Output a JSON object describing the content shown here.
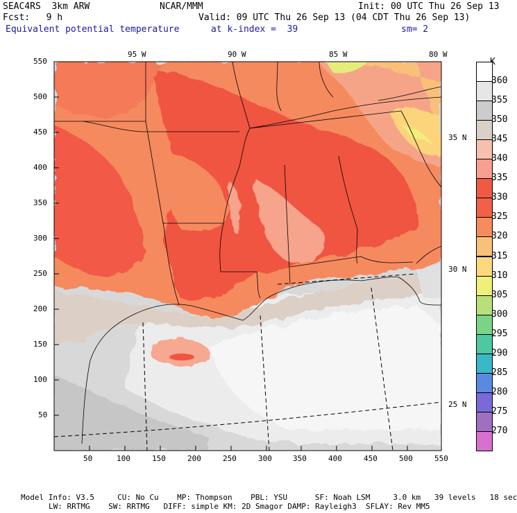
{
  "header": {
    "model": "SEAC4RS  3km ARW",
    "org": "NCAR/MMM",
    "init": "Init: 00 UTC Thu 26 Sep 13",
    "fcst": "Fcst:   9 h",
    "valid": "Valid: 09 UTC Thu 26 Sep 13 (04 CDT Thu 26 Sep 13)",
    "field": "Equivalent potential temperature",
    "level": "at k-index =  39",
    "smoothing": "sm= 2"
  },
  "top_longitudes": [
    "95 W",
    "90 W",
    "85 W",
    "80 W"
  ],
  "right_latitudes": [
    "35 N",
    "30 N",
    "25 N"
  ],
  "x_ticks": [
    "50",
    "100",
    "150",
    "200",
    "250",
    "300",
    "350",
    "400",
    "450",
    "500",
    "550"
  ],
  "y_ticks": [
    "550",
    "500",
    "450",
    "400",
    "350",
    "300",
    "250",
    "200",
    "150",
    "100",
    "50"
  ],
  "colorbar": {
    "unit": "K",
    "levels": [
      "360",
      "355",
      "350",
      "345",
      "340",
      "335",
      "330",
      "325",
      "320",
      "315",
      "310",
      "305",
      "300",
      "295",
      "290",
      "285",
      "280",
      "275",
      "270"
    ],
    "colors": [
      "#ffffff",
      "#e6e6e6",
      "#cccccc",
      "#d9d0c8",
      "#f7c0ae",
      "#f7a090",
      "#f05a45",
      "#f26049",
      "#f68c5c",
      "#f9c07a",
      "#fcd97c",
      "#eef07a",
      "#b8e07a",
      "#7ad488",
      "#4ec8a0",
      "#3ab8c8",
      "#5a8ae0",
      "#7a6ad8",
      "#a070c0",
      "#d870d0"
    ]
  },
  "footer": {
    "line1": "Model Info: V3.5     CU: No Cu    MP: Thompson    PBL: YSU      SF: Noah LSM     3.0 km   39 levels   18 sec",
    "line2": "LW: RRTMG    SW: RRTMG   DIFF: simple KM: 2D Smagor DAMP: Rayleigh3  SFLAY: Rev MM5"
  }
}
